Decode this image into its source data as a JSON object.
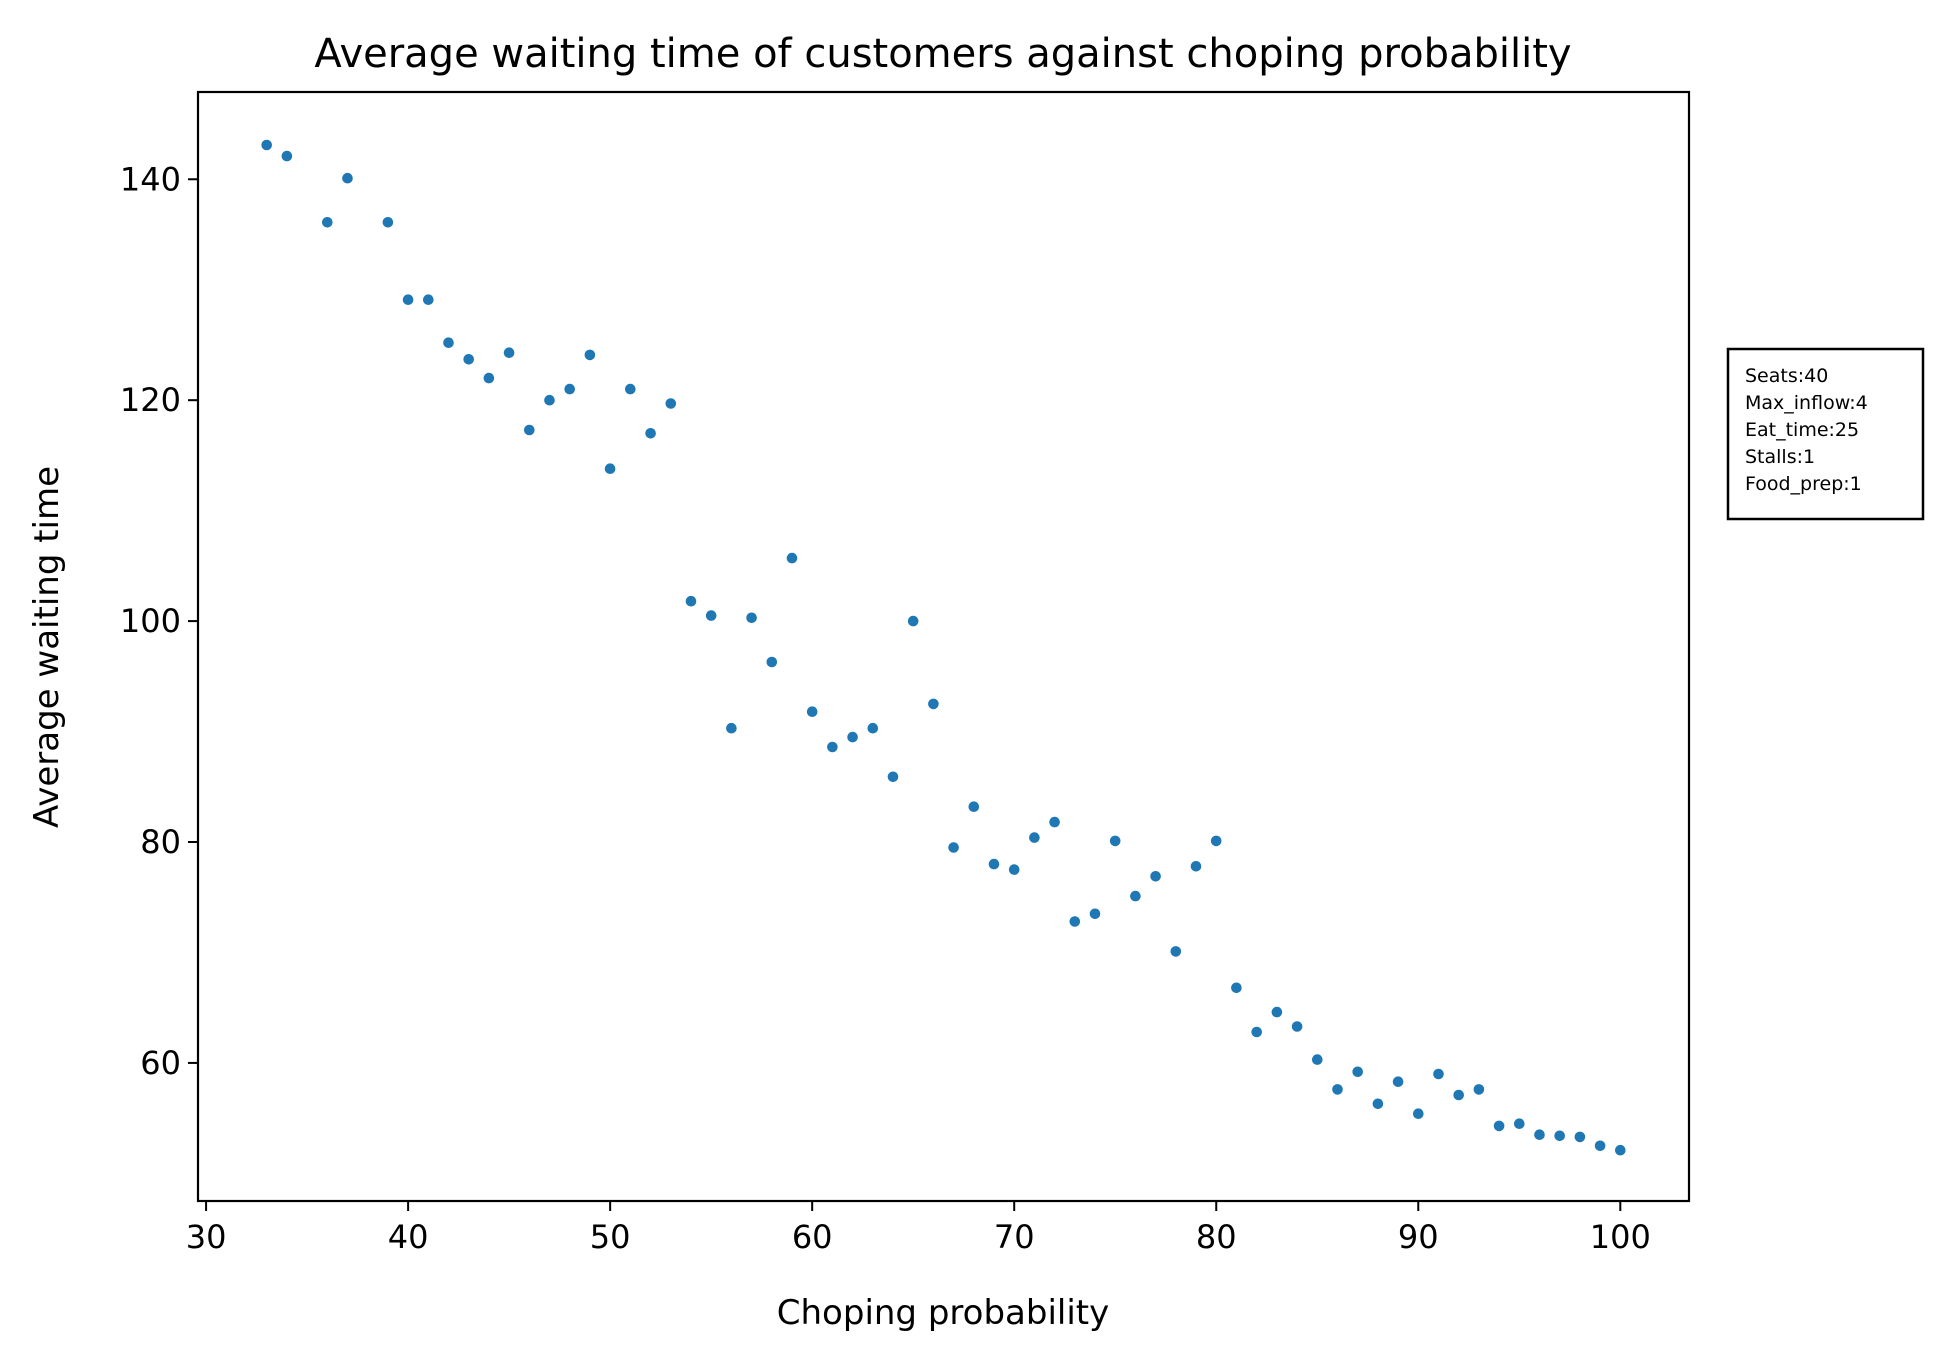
{
  "chart_data": {
    "type": "scatter",
    "title": "Average waiting time of customers against choping probability",
    "xlabel": "Choping probability",
    "ylabel": "Average waiting time",
    "xlim": [
      29.6,
      103.4
    ],
    "ylim": [
      47.5,
      147.9
    ],
    "xticks": [
      30,
      40,
      50,
      60,
      70,
      80,
      90,
      100
    ],
    "yticks": [
      60,
      80,
      100,
      120,
      140
    ],
    "grid": false,
    "marker_color": "#1f77b4",
    "series": [
      {
        "x": [
          33,
          34,
          36,
          37,
          39,
          40,
          41,
          42,
          43,
          44,
          45,
          46,
          47,
          48,
          49,
          50,
          51,
          52,
          53,
          54,
          55,
          56,
          57,
          58,
          59,
          60,
          61,
          62,
          63,
          64,
          65,
          66,
          67,
          68,
          69,
          70,
          71,
          72,
          73,
          74,
          75,
          76,
          77,
          78,
          79,
          80,
          81,
          82,
          83,
          84,
          85,
          86,
          87,
          88,
          89,
          90,
          91,
          92,
          93,
          94,
          95,
          96,
          97,
          98,
          99,
          100
        ],
        "y": [
          143.1,
          142.1,
          136.1,
          140.1,
          136.1,
          129.1,
          129.1,
          125.2,
          123.7,
          122.0,
          124.3,
          117.3,
          120.0,
          121.0,
          124.1,
          113.8,
          121.0,
          117.0,
          119.7,
          101.8,
          100.5,
          90.3,
          100.3,
          96.3,
          105.7,
          91.8,
          88.6,
          89.5,
          90.3,
          85.9,
          100.0,
          92.5,
          79.5,
          83.2,
          78.0,
          77.5,
          80.4,
          81.8,
          72.8,
          73.5,
          80.1,
          75.1,
          76.9,
          70.1,
          77.8,
          80.1,
          66.8,
          62.8,
          64.6,
          63.3,
          60.3,
          57.6,
          59.2,
          56.3,
          58.3,
          55.4,
          59.0,
          57.1,
          57.6,
          54.3,
          54.5,
          53.5,
          53.4,
          53.3,
          52.5,
          52.1
        ]
      }
    ]
  },
  "info_box": {
    "lines": [
      "Seats:40",
      "Max_inflow:4",
      "Eat_time:25",
      "Stalls:1",
      "Food_prep:1"
    ]
  }
}
